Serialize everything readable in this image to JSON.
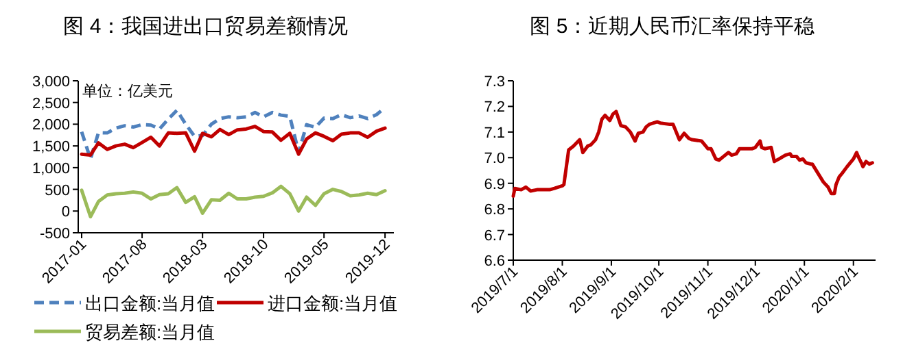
{
  "chart_data": [
    {
      "type": "line",
      "title": "图 4：我国进出口贸易差额情况",
      "annotations": [
        "单位：亿美元"
      ],
      "x": [
        "2017-01",
        "2017-02",
        "2017-03",
        "2017-04",
        "2017-05",
        "2017-06",
        "2017-07",
        "2017-08",
        "2017-09",
        "2017-10",
        "2017-11",
        "2017-12",
        "2018-01",
        "2018-02",
        "2018-03",
        "2018-04",
        "2018-05",
        "2018-06",
        "2018-07",
        "2018-08",
        "2018-09",
        "2018-10",
        "2018-11",
        "2018-12",
        "2019-01",
        "2019-02",
        "2019-03",
        "2019-04",
        "2019-05",
        "2019-06",
        "2019-07",
        "2019-08",
        "2019-09",
        "2019-10",
        "2019-11",
        "2019-12"
      ],
      "series": [
        {
          "name": "出口金额:当月值",
          "color": "#4f81bd",
          "line_style": "dashed",
          "values": [
            1825,
            1200,
            1805,
            1800,
            1910,
            1965,
            1935,
            1990,
            1980,
            1890,
            2120,
            2320,
            2000,
            1720,
            1740,
            2000,
            2130,
            2170,
            2150,
            2170,
            2270,
            2170,
            2270,
            2210,
            2180,
            1350,
            1990,
            1930,
            2140,
            2130,
            2220,
            2150,
            2190,
            2130,
            2220,
            2380
          ]
        },
        {
          "name": "进口金额:当月值",
          "color": "#c00000",
          "line_style": "solid",
          "values": [
            1310,
            1290,
            1570,
            1420,
            1500,
            1540,
            1460,
            1580,
            1700,
            1500,
            1800,
            1790,
            1800,
            1380,
            1790,
            1710,
            1880,
            1760,
            1870,
            1890,
            1950,
            1830,
            1820,
            1630,
            1790,
            1310,
            1660,
            1800,
            1720,
            1620,
            1770,
            1800,
            1800,
            1700,
            1840,
            1910
          ]
        },
        {
          "name": "贸易差额:当月值",
          "color": "#9bbb59",
          "line_style": "solid",
          "values": [
            480,
            -130,
            220,
            370,
            400,
            410,
            440,
            410,
            280,
            380,
            400,
            540,
            200,
            330,
            -50,
            260,
            250,
            410,
            280,
            280,
            320,
            340,
            420,
            570,
            400,
            0,
            320,
            130,
            400,
            500,
            450,
            350,
            370,
            410,
            380,
            470
          ]
        }
      ],
      "xlim": [
        "2016-12-20",
        "2020-01-01"
      ],
      "xticks": [
        {
          "value": "2017-01",
          "label": "2017-01"
        },
        {
          "value": "2017-08",
          "label": "2017-08"
        },
        {
          "value": "2018-03",
          "label": "2018-03"
        },
        {
          "value": "2018-10",
          "label": "2018-10"
        },
        {
          "value": "2019-05",
          "label": "2019-05"
        },
        {
          "value": "2019-12",
          "label": "2019-12"
        }
      ],
      "ylim": [
        -500,
        3000
      ],
      "yticks": [
        -500,
        0,
        500,
        {
          "value": 1000,
          "label": "1,000"
        },
        {
          "value": 1500,
          "label": "1,500"
        },
        {
          "value": 2000,
          "label": "2,000"
        },
        {
          "value": 2500,
          "label": "2,500"
        },
        {
          "value": 3000,
          "label": "3,000"
        }
      ],
      "legend": "bottom"
    },
    {
      "type": "line",
      "title": "图 5：近期人民币汇率保持平稳",
      "x": [
        "2019-07-01",
        "2019-07-02",
        "2019-07-06",
        "2019-07-09",
        "2019-07-12",
        "2019-07-16",
        "2019-07-20",
        "2019-07-24",
        "2019-07-27",
        "2019-08-01",
        "2019-08-02",
        "2019-08-05",
        "2019-08-08",
        "2019-08-12",
        "2019-08-14",
        "2019-08-17",
        "2019-08-19",
        "2019-08-22",
        "2019-08-24",
        "2019-08-26",
        "2019-08-28",
        "2019-08-31",
        "2019-09-02",
        "2019-09-04",
        "2019-09-07",
        "2019-09-10",
        "2019-09-13",
        "2019-09-16",
        "2019-09-18",
        "2019-09-21",
        "2019-09-23",
        "2019-09-25",
        "2019-09-30",
        "2019-10-02",
        "2019-10-08",
        "2019-10-10",
        "2019-10-14",
        "2019-10-17",
        "2019-10-20",
        "2019-10-22",
        "2019-10-28",
        "2019-11-01",
        "2019-11-03",
        "2019-11-06",
        "2019-11-08",
        "2019-11-11",
        "2019-11-14",
        "2019-11-16",
        "2019-11-19",
        "2019-11-21",
        "2019-11-24",
        "2019-11-29",
        "2019-12-01",
        "2019-12-04",
        "2019-12-05",
        "2019-12-07",
        "2019-12-11",
        "2019-12-13",
        "2019-12-16",
        "2019-12-20",
        "2019-12-23",
        "2019-12-24",
        "2019-12-27",
        "2019-12-29",
        "2019-12-31",
        "2020-01-02",
        "2020-01-05",
        "2020-01-06",
        "2020-01-08",
        "2020-01-10",
        "2020-01-13",
        "2020-01-16",
        "2020-01-18",
        "2020-01-20",
        "2020-01-21",
        "2020-01-23",
        "2020-01-25",
        "2020-01-28",
        "2020-02-01",
        "2020-02-03",
        "2020-02-04",
        "2020-02-06",
        "2020-02-07",
        "2020-02-09",
        "2020-02-11",
        "2020-02-13"
      ],
      "series": [
        {
          "color": "#c00000",
          "line_style": "solid",
          "values": [
            6.85,
            6.88,
            6.875,
            6.885,
            6.87,
            6.875,
            6.875,
            6.875,
            6.88,
            6.89,
            6.895,
            7.03,
            7.045,
            7.07,
            7.02,
            7.045,
            7.05,
            7.07,
            7.1,
            7.15,
            7.165,
            7.145,
            7.17,
            7.18,
            7.125,
            7.12,
            7.1,
            7.065,
            7.095,
            7.1,
            7.12,
            7.13,
            7.14,
            7.135,
            7.13,
            7.13,
            7.07,
            7.095,
            7.075,
            7.07,
            7.065,
            7.035,
            7.035,
            6.995,
            6.99,
            7.005,
            7.02,
            7.01,
            7.015,
            7.035,
            7.035,
            7.035,
            7.04,
            7.065,
            7.04,
            7.035,
            7.04,
            6.985,
            6.995,
            7.01,
            7.015,
            7.005,
            7.005,
            6.99,
            6.995,
            6.98,
            6.975,
            6.975,
            6.955,
            6.935,
            6.905,
            6.885,
            6.86,
            6.86,
            6.895,
            6.925,
            6.94,
            6.965,
            6.995,
            7.02,
            7.005,
            6.98,
            6.965,
            6.985,
            6.975,
            6.98
          ]
        }
      ],
      "xlim": [
        "2019-07-01",
        "2020-02-15"
      ],
      "xticks": [
        {
          "value": "2019-07-01",
          "label": "2019/7/1"
        },
        {
          "value": "2019-08-01",
          "label": "2019/8/1"
        },
        {
          "value": "2019-09-01",
          "label": "2019/9/1"
        },
        {
          "value": "2019-10-01",
          "label": "2019/10/1"
        },
        {
          "value": "2019-11-01",
          "label": "2019/11/1"
        },
        {
          "value": "2019-12-01",
          "label": "2019/12/1"
        },
        {
          "value": "2020-01-01",
          "label": "2020/1/1"
        },
        {
          "value": "2020-02-01",
          "label": "2020/2/1"
        }
      ],
      "ylim": [
        6.6,
        7.3
      ],
      "yticks": [
        6.6,
        6.7,
        6.8,
        6.9,
        {
          "value": 7.0,
          "label": "7.0"
        },
        7.1,
        7.2,
        7.3
      ]
    }
  ]
}
